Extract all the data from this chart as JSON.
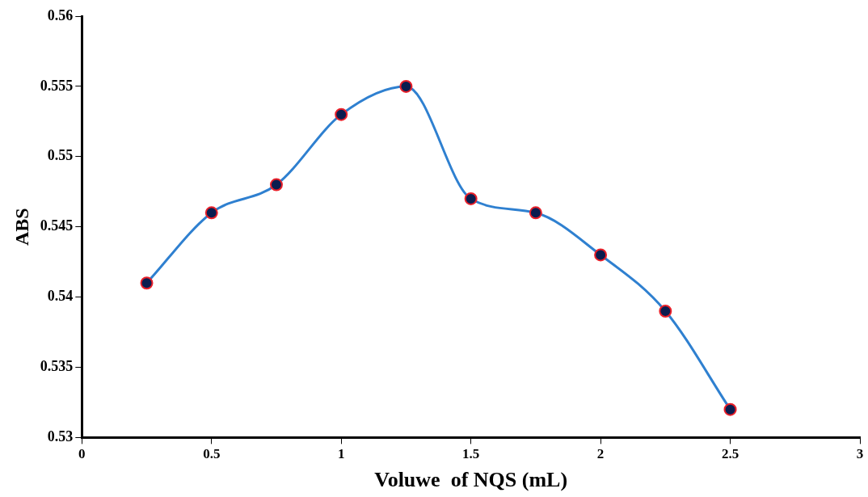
{
  "chart_data": {
    "type": "line",
    "xlabel": "Voluwe  of NQS (mL)",
    "ylabel": "ABS",
    "x": [
      0.25,
      0.5,
      0.75,
      1,
      1.25,
      1.5,
      1.75,
      2,
      2.25,
      2.5
    ],
    "series": [
      {
        "color": "#2f80d0",
        "values": [
          0.541,
          0.546,
          0.548,
          0.553,
          0.555,
          0.547,
          0.546,
          0.543,
          0.539,
          0.532
        ]
      }
    ],
    "xlim": [
      0,
      3
    ],
    "xticks": [
      0,
      0.5,
      1,
      1.5,
      2,
      2.5,
      3
    ],
    "ylim": [
      0.53,
      0.56
    ],
    "yticks": [
      0.53,
      0.535,
      0.54,
      0.545,
      0.55,
      0.555,
      0.56
    ],
    "grid": false,
    "legend": false,
    "marker": "circle",
    "line_style": "solid"
  }
}
